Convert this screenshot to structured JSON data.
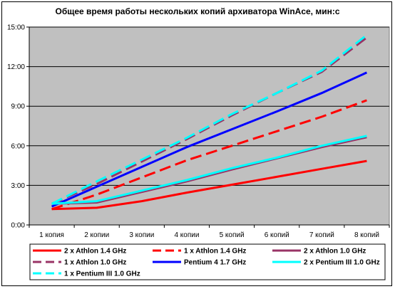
{
  "chart_data": {
    "type": "line",
    "title": "Общее время работы нескольких копий архиватора WinAce, мин:с",
    "xlabel": "",
    "ylabel": "",
    "categories": [
      "1 копия",
      "2 копии",
      "3 копии",
      "4 копии",
      "5 копий",
      "6 копий",
      "7 копий",
      "8 копий"
    ],
    "y_ticks": [
      "0:00",
      "3:00",
      "6:00",
      "9:00",
      "12:00",
      "15:00"
    ],
    "ylim": [
      0,
      15
    ],
    "y_unit": "minutes",
    "grid": "horizontal",
    "legend_position": "bottom",
    "plot_background": "#c0c0c0",
    "series": [
      {
        "name": "2 x Athlon 1.4 GHz",
        "color": "#ff0000",
        "dash": "solid",
        "values": [
          1.2,
          1.3,
          1.8,
          2.45,
          3.05,
          3.65,
          4.25,
          4.85
        ]
      },
      {
        "name": "1 x Athlon 1.4 GHz",
        "color": "#ff0000",
        "dash": "dashed",
        "values": [
          1.2,
          2.3,
          3.6,
          4.9,
          6.0,
          7.1,
          8.2,
          9.45
        ]
      },
      {
        "name": "2 x Athlon 1.0 GHz",
        "color": "#993366",
        "dash": "solid",
        "values": [
          1.6,
          1.7,
          2.5,
          3.3,
          4.2,
          5.05,
          5.9,
          6.65
        ]
      },
      {
        "name": "1 x Athlon 1.0 GHz",
        "color": "#993366",
        "dash": "dashed",
        "values": [
          1.6,
          3.1,
          4.8,
          6.5,
          8.3,
          10.0,
          11.6,
          14.2
        ]
      },
      {
        "name": "Pentium 4 1.7 GHz",
        "color": "#0000ff",
        "dash": "solid",
        "values": [
          1.4,
          2.9,
          4.4,
          5.9,
          7.25,
          8.6,
          10.0,
          11.55
        ]
      },
      {
        "name": "2 x Pentium III 1.0 GHz",
        "color": "#00ffff",
        "dash": "solid",
        "values": [
          1.6,
          1.8,
          2.6,
          3.4,
          4.3,
          5.1,
          6.0,
          6.75
        ]
      },
      {
        "name": "1 x Pentium III 1.0 GHz",
        "color": "#00ffff",
        "dash": "dashed",
        "values": [
          1.6,
          3.3,
          4.95,
          6.6,
          8.4,
          10.0,
          11.7,
          14.4
        ]
      }
    ]
  }
}
